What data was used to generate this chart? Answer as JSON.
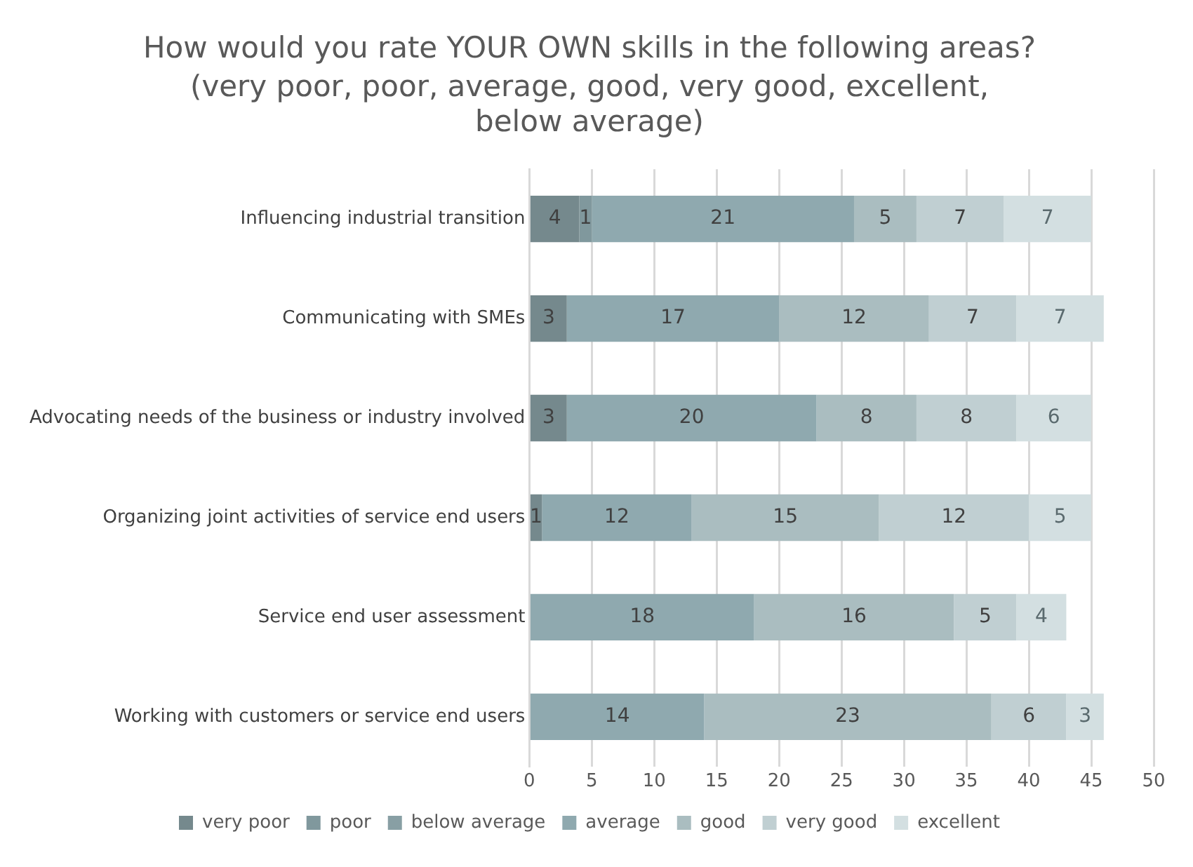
{
  "chart_data": {
    "type": "bar",
    "orientation": "horizontal",
    "stacked": true,
    "title": "How would you rate YOUR OWN skills in the following areas?",
    "subtitle": "(very poor, poor, average, good, very good, excellent, below average)",
    "categories": [
      "Influencing industrial transition",
      "Communicating with SMEs",
      "Advocating needs of the business or industry involved",
      "Organizing joint activities of service end users",
      "Service end user assessment",
      "Working with customers or service end users"
    ],
    "series": [
      {
        "name": "very poor",
        "color": "#75898d",
        "values": [
          4,
          3,
          3,
          1,
          null,
          null
        ]
      },
      {
        "name": "poor",
        "color": "#80989d",
        "values": [
          1,
          null,
          null,
          null,
          null,
          null
        ]
      },
      {
        "name": "below average",
        "color": "#889fa4",
        "values": [
          null,
          null,
          null,
          null,
          null,
          null
        ]
      },
      {
        "name": "average",
        "color": "#8fa9af",
        "values": [
          21,
          17,
          20,
          12,
          18,
          14
        ]
      },
      {
        "name": "good",
        "color": "#aabdc0",
        "values": [
          5,
          12,
          8,
          15,
          16,
          23
        ]
      },
      {
        "name": "very good",
        "color": "#c0cfd2",
        "values": [
          7,
          7,
          8,
          12,
          5,
          6
        ]
      },
      {
        "name": "excellent",
        "color": "#d3dfe1",
        "values": [
          7,
          7,
          6,
          5,
          4,
          3
        ]
      }
    ],
    "xlim": [
      0,
      50
    ],
    "xticks": [
      0,
      5,
      10,
      15,
      20,
      25,
      30,
      35,
      40,
      45,
      50
    ],
    "grid": "x",
    "legend": "bottom",
    "data_labels": true
  }
}
